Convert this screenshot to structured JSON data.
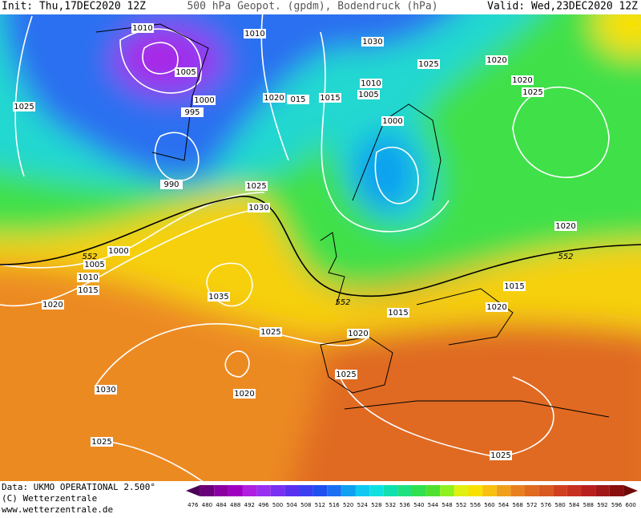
{
  "header": {
    "init": "Init: Thu,17DEC2020 12Z",
    "title": "500 hPa Geopot. (gpdm), Bodendruck (hPa)",
    "valid": "Valid: Wed,23DEC2020 12Z"
  },
  "map": {
    "labels": [
      "1010",
      "1010",
      "1030",
      "1025",
      "1020",
      "1005",
      "1020",
      "1025",
      "1025",
      "1000",
      "995",
      "1020",
      "015",
      "1015",
      "1010",
      "1005",
      "1000",
      "990",
      "1025",
      "1030",
      "1000",
      "552",
      "1005",
      "1010",
      "1015",
      "1020",
      "1035",
      "552",
      "1015",
      "1015",
      "1020",
      "552",
      "1020",
      "1025",
      "1020",
      "1025",
      "1030",
      "1020",
      "1025",
      "1025"
    ]
  },
  "colorbar": {
    "labels": [
      "476",
      "480",
      "484",
      "488",
      "492",
      "496",
      "500",
      "504",
      "508",
      "512",
      "516",
      "520",
      "524",
      "528",
      "532",
      "536",
      "540",
      "544",
      "548",
      "552",
      "556",
      "560",
      "564",
      "568",
      "572",
      "576",
      "580",
      "584",
      "588",
      "592",
      "596",
      "600"
    ],
    "colors": [
      "#4b0055",
      "#6a007a",
      "#8a00a0",
      "#a000c0",
      "#b020e0",
      "#9a30f0",
      "#7a30f0",
      "#5a30f0",
      "#3a40f0",
      "#2050f0",
      "#1a70f0",
      "#10a0f0",
      "#10c8f0",
      "#10e0e0",
      "#10e0b0",
      "#20e080",
      "#30e050",
      "#50e030",
      "#90f020",
      "#e0f010",
      "#f8e000",
      "#f8c010",
      "#f0a018",
      "#e88020",
      "#e06a20",
      "#d85a20",
      "#d04020",
      "#c83020",
      "#b82020",
      "#a01818",
      "#880f10",
      "#700808"
    ]
  },
  "footer": {
    "data": "Data: UKMO OPERATIONAL 2.500°",
    "copyright": "(C) Wetterzentrale",
    "url": "www.wetterzentrale.de"
  }
}
